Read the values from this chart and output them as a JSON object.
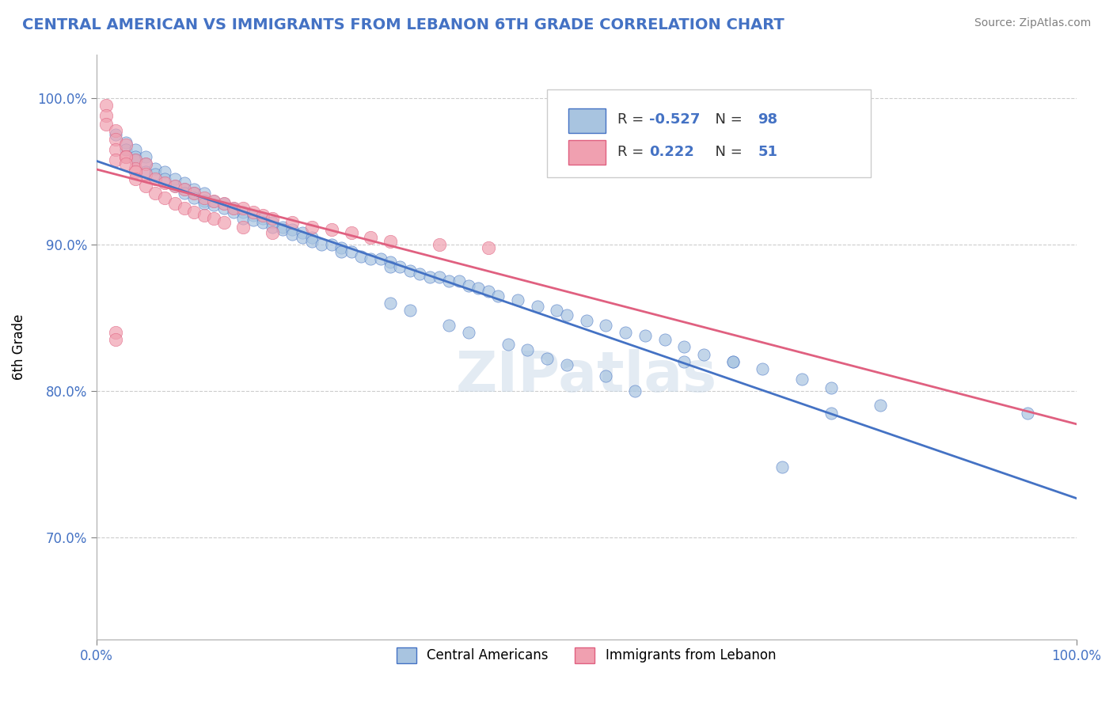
{
  "title": "CENTRAL AMERICAN VS IMMIGRANTS FROM LEBANON 6TH GRADE CORRELATION CHART",
  "source": "Source: ZipAtlas.com",
  "ylabel": "6th Grade",
  "xlim": [
    0.0,
    1.0
  ],
  "ylim": [
    0.63,
    1.03
  ],
  "ytick_values": [
    0.7,
    0.8,
    0.9,
    1.0
  ],
  "ytick_labels": [
    "70.0%",
    "80.0%",
    "90.0%",
    "100.0%"
  ],
  "xtick_values": [
    0.0,
    1.0
  ],
  "xtick_labels": [
    "0.0%",
    "100.0%"
  ],
  "blue_R": -0.527,
  "blue_N": 98,
  "pink_R": 0.222,
  "pink_N": 51,
  "blue_color": "#a8c4e0",
  "pink_color": "#f0a0b0",
  "blue_line_color": "#4472c4",
  "pink_line_color": "#e06080",
  "text_color": "#4472c4",
  "watermark": "ZIPatlas",
  "blue_scatter_x": [
    0.02,
    0.03,
    0.03,
    0.04,
    0.04,
    0.04,
    0.05,
    0.05,
    0.05,
    0.06,
    0.06,
    0.07,
    0.07,
    0.08,
    0.08,
    0.09,
    0.09,
    0.09,
    0.1,
    0.1,
    0.1,
    0.11,
    0.11,
    0.11,
    0.12,
    0.12,
    0.13,
    0.13,
    0.14,
    0.14,
    0.15,
    0.15,
    0.16,
    0.16,
    0.17,
    0.17,
    0.18,
    0.18,
    0.19,
    0.19,
    0.2,
    0.2,
    0.21,
    0.21,
    0.22,
    0.22,
    0.23,
    0.24,
    0.25,
    0.25,
    0.26,
    0.27,
    0.28,
    0.29,
    0.3,
    0.3,
    0.31,
    0.32,
    0.33,
    0.34,
    0.35,
    0.36,
    0.37,
    0.38,
    0.39,
    0.4,
    0.41,
    0.43,
    0.45,
    0.47,
    0.48,
    0.5,
    0.52,
    0.54,
    0.56,
    0.58,
    0.6,
    0.62,
    0.65,
    0.68,
    0.72,
    0.75,
    0.3,
    0.32,
    0.36,
    0.38,
    0.42,
    0.44,
    0.46,
    0.48,
    0.52,
    0.55,
    0.6,
    0.65,
    0.7,
    0.75,
    0.8,
    0.95
  ],
  "blue_scatter_y": [
    0.975,
    0.97,
    0.965,
    0.965,
    0.96,
    0.958,
    0.96,
    0.955,
    0.95,
    0.952,
    0.948,
    0.95,
    0.945,
    0.945,
    0.94,
    0.942,
    0.938,
    0.935,
    0.938,
    0.935,
    0.932,
    0.935,
    0.93,
    0.928,
    0.93,
    0.927,
    0.928,
    0.925,
    0.925,
    0.922,
    0.922,
    0.918,
    0.92,
    0.917,
    0.918,
    0.915,
    0.915,
    0.912,
    0.912,
    0.91,
    0.91,
    0.907,
    0.908,
    0.905,
    0.905,
    0.902,
    0.9,
    0.9,
    0.898,
    0.895,
    0.895,
    0.892,
    0.89,
    0.89,
    0.888,
    0.885,
    0.885,
    0.882,
    0.88,
    0.878,
    0.878,
    0.875,
    0.875,
    0.872,
    0.87,
    0.868,
    0.865,
    0.862,
    0.858,
    0.855,
    0.852,
    0.848,
    0.845,
    0.84,
    0.838,
    0.835,
    0.83,
    0.825,
    0.82,
    0.815,
    0.808,
    0.802,
    0.86,
    0.855,
    0.845,
    0.84,
    0.832,
    0.828,
    0.822,
    0.818,
    0.81,
    0.8,
    0.82,
    0.82,
    0.748,
    0.785,
    0.79,
    0.785
  ],
  "pink_scatter_x": [
    0.01,
    0.01,
    0.01,
    0.02,
    0.02,
    0.02,
    0.02,
    0.03,
    0.03,
    0.04,
    0.04,
    0.05,
    0.05,
    0.06,
    0.07,
    0.08,
    0.09,
    0.1,
    0.11,
    0.12,
    0.13,
    0.14,
    0.15,
    0.16,
    0.17,
    0.18,
    0.2,
    0.22,
    0.24,
    0.26,
    0.28,
    0.3,
    0.35,
    0.4,
    0.02,
    0.02,
    0.03,
    0.03,
    0.04,
    0.04,
    0.05,
    0.06,
    0.07,
    0.08,
    0.09,
    0.1,
    0.11,
    0.12,
    0.13,
    0.15,
    0.18
  ],
  "pink_scatter_y": [
    0.995,
    0.988,
    0.982,
    0.978,
    0.972,
    0.965,
    0.958,
    0.968,
    0.96,
    0.958,
    0.952,
    0.955,
    0.948,
    0.945,
    0.942,
    0.94,
    0.938,
    0.935,
    0.932,
    0.93,
    0.928,
    0.925,
    0.925,
    0.922,
    0.92,
    0.918,
    0.915,
    0.912,
    0.91,
    0.908,
    0.905,
    0.902,
    0.9,
    0.898,
    0.84,
    0.835,
    0.96,
    0.955,
    0.95,
    0.945,
    0.94,
    0.935,
    0.932,
    0.928,
    0.925,
    0.922,
    0.92,
    0.918,
    0.915,
    0.912,
    0.908
  ]
}
